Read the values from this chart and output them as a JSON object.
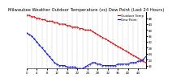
{
  "title": "Milwaukee Weather Outdoor Temperature (vs) Dew Point (Last 24 Hours)",
  "title_fontsize": 3.8,
  "background_color": "#ffffff",
  "grid_color": "#aaaaaa",
  "temp_color": "#cc0000",
  "dew_color": "#0000cc",
  "ylim": [
    14,
    52
  ],
  "ytick_values": [
    16,
    20,
    24,
    28,
    32,
    36,
    40,
    44,
    48
  ],
  "ytick_labels": [
    "16",
    "20",
    "24",
    "28",
    "32",
    "36",
    "40",
    "44",
    "48"
  ],
  "temp_x": [
    0,
    1,
    2,
    3,
    4,
    5,
    6,
    7,
    8,
    9,
    10,
    11,
    12,
    13,
    14,
    15,
    16,
    17,
    18,
    19,
    20,
    21,
    22,
    23,
    24,
    25,
    26,
    27,
    28,
    29,
    30,
    31,
    32,
    33,
    34,
    35,
    36,
    37,
    38,
    39,
    40,
    41,
    42,
    43,
    44,
    45,
    46,
    47
  ],
  "temp_y": [
    50,
    50,
    49,
    49,
    48,
    48,
    47,
    47,
    46,
    46,
    46,
    45,
    45,
    44,
    44,
    44,
    43,
    43,
    42,
    42,
    42,
    41,
    41,
    40,
    40,
    40,
    39,
    38,
    37,
    36,
    35,
    34,
    33,
    32,
    31,
    30,
    29,
    28,
    27,
    26,
    25,
    24,
    23,
    22,
    21,
    20,
    19,
    18
  ],
  "dew_x": [
    0,
    1,
    2,
    3,
    4,
    5,
    6,
    7,
    8,
    9,
    10,
    11,
    12,
    13,
    14,
    15,
    16,
    17,
    18,
    19,
    20,
    21,
    22,
    23,
    24,
    25,
    26,
    27,
    28,
    29,
    30,
    31,
    32,
    33,
    34,
    35,
    36,
    37,
    38,
    39,
    40,
    41,
    42,
    43,
    44,
    45,
    46,
    47
  ],
  "dew_y": [
    38,
    37,
    36,
    34,
    32,
    30,
    28,
    26,
    24,
    22,
    20,
    18,
    17,
    16,
    16,
    16,
    15,
    15,
    15,
    15,
    14,
    14,
    14,
    15,
    16,
    17,
    18,
    18,
    17,
    17,
    16,
    16,
    16,
    16,
    16,
    16,
    17,
    17,
    17,
    17,
    17,
    18,
    18,
    18,
    19,
    19,
    20,
    22
  ],
  "n_points": 48,
  "tick_fontsize": 2.8,
  "line_markersize": 0.8,
  "linewidth": 0.6,
  "right_border_color": "#000000",
  "legend_temp_label": "Outdoor Temp",
  "legend_dew_label": "Dew Point",
  "legend_fontsize": 2.8
}
